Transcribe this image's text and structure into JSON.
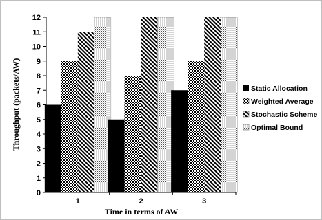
{
  "chart_data": {
    "type": "bar",
    "xlabel": "Time in terms of AW",
    "ylabel": "Throughput (packets/AW)",
    "categories": [
      "1",
      "2",
      "3"
    ],
    "ylim": [
      0,
      12
    ],
    "yticks": [
      0,
      1,
      2,
      3,
      4,
      5,
      6,
      7,
      8,
      9,
      10,
      11,
      12
    ],
    "legend_position": "right",
    "grid": false,
    "series": [
      {
        "name": "Static Allocation",
        "values": [
          6,
          5,
          7
        ],
        "pattern": "solid-black"
      },
      {
        "name": "Weighted Average",
        "values": [
          9,
          8,
          9
        ],
        "pattern": "checkerboard"
      },
      {
        "name": "Stochastic Scheme",
        "values": [
          11,
          12,
          12
        ],
        "pattern": "diagonal-stripes"
      },
      {
        "name": "Optimal Bound",
        "values": [
          12,
          12,
          12
        ],
        "pattern": "dotted-crosshatch"
      }
    ]
  }
}
